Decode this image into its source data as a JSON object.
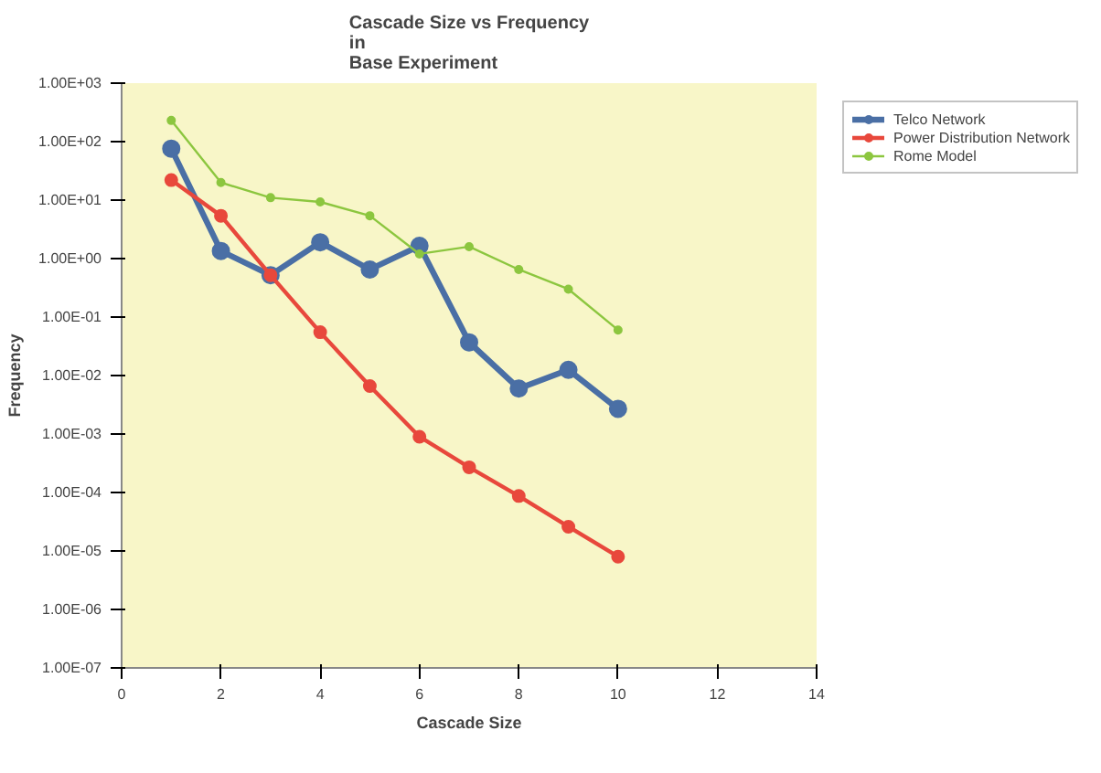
{
  "chart_data": {
    "type": "line",
    "title": "Cascade Size vs Frequency\nin\nBase Experiment",
    "xlabel": "Cascade Size",
    "ylabel": "Frequency",
    "x": [
      1,
      2,
      3,
      4,
      5,
      6,
      7,
      8,
      9,
      10
    ],
    "log": "y",
    "xlim": [
      0,
      14
    ],
    "xticks": [
      0,
      2,
      4,
      6,
      8,
      10,
      12,
      14
    ],
    "ylim": [
      1e-07,
      1000
    ],
    "yticks": [
      {
        "value": 1e-07,
        "label": "1.00E-07"
      },
      {
        "value": 1e-06,
        "label": "1.00E-06"
      },
      {
        "value": 1e-05,
        "label": "1.00E-05"
      },
      {
        "value": 0.0001,
        "label": "1.00E-04"
      },
      {
        "value": 0.001,
        "label": "1.00E-03"
      },
      {
        "value": 0.01,
        "label": "1.00E-02"
      },
      {
        "value": 0.1,
        "label": "1.00E-01"
      },
      {
        "value": 1,
        "label": "1.00E+00"
      },
      {
        "value": 10,
        "label": "1.00E+01"
      },
      {
        "value": 100,
        "label": "1.00E+02"
      },
      {
        "value": 1000,
        "label": "1.00E+03"
      }
    ],
    "grid": false,
    "legend": "right",
    "marker": "circle",
    "line_style": "solid",
    "series": [
      {
        "name": "Telco Network",
        "color": "#4a6fa5",
        "values": [
          76,
          1.35,
          0.52,
          1.9,
          0.65,
          1.65,
          0.037,
          0.006,
          0.0125,
          0.0027
        ]
      },
      {
        "name": "Power Distribution Network",
        "color": "#e8483c",
        "values": [
          22,
          5.4,
          0.52,
          0.055,
          0.0066,
          0.0009,
          0.00027,
          8.7e-05,
          2.6e-05,
          8e-06
        ]
      },
      {
        "name": "Rome Model",
        "color": "#8cc63f",
        "values": [
          230,
          20,
          11,
          9.3,
          5.4,
          1.2,
          1.6,
          0.65,
          0.3,
          0.06
        ]
      }
    ]
  }
}
